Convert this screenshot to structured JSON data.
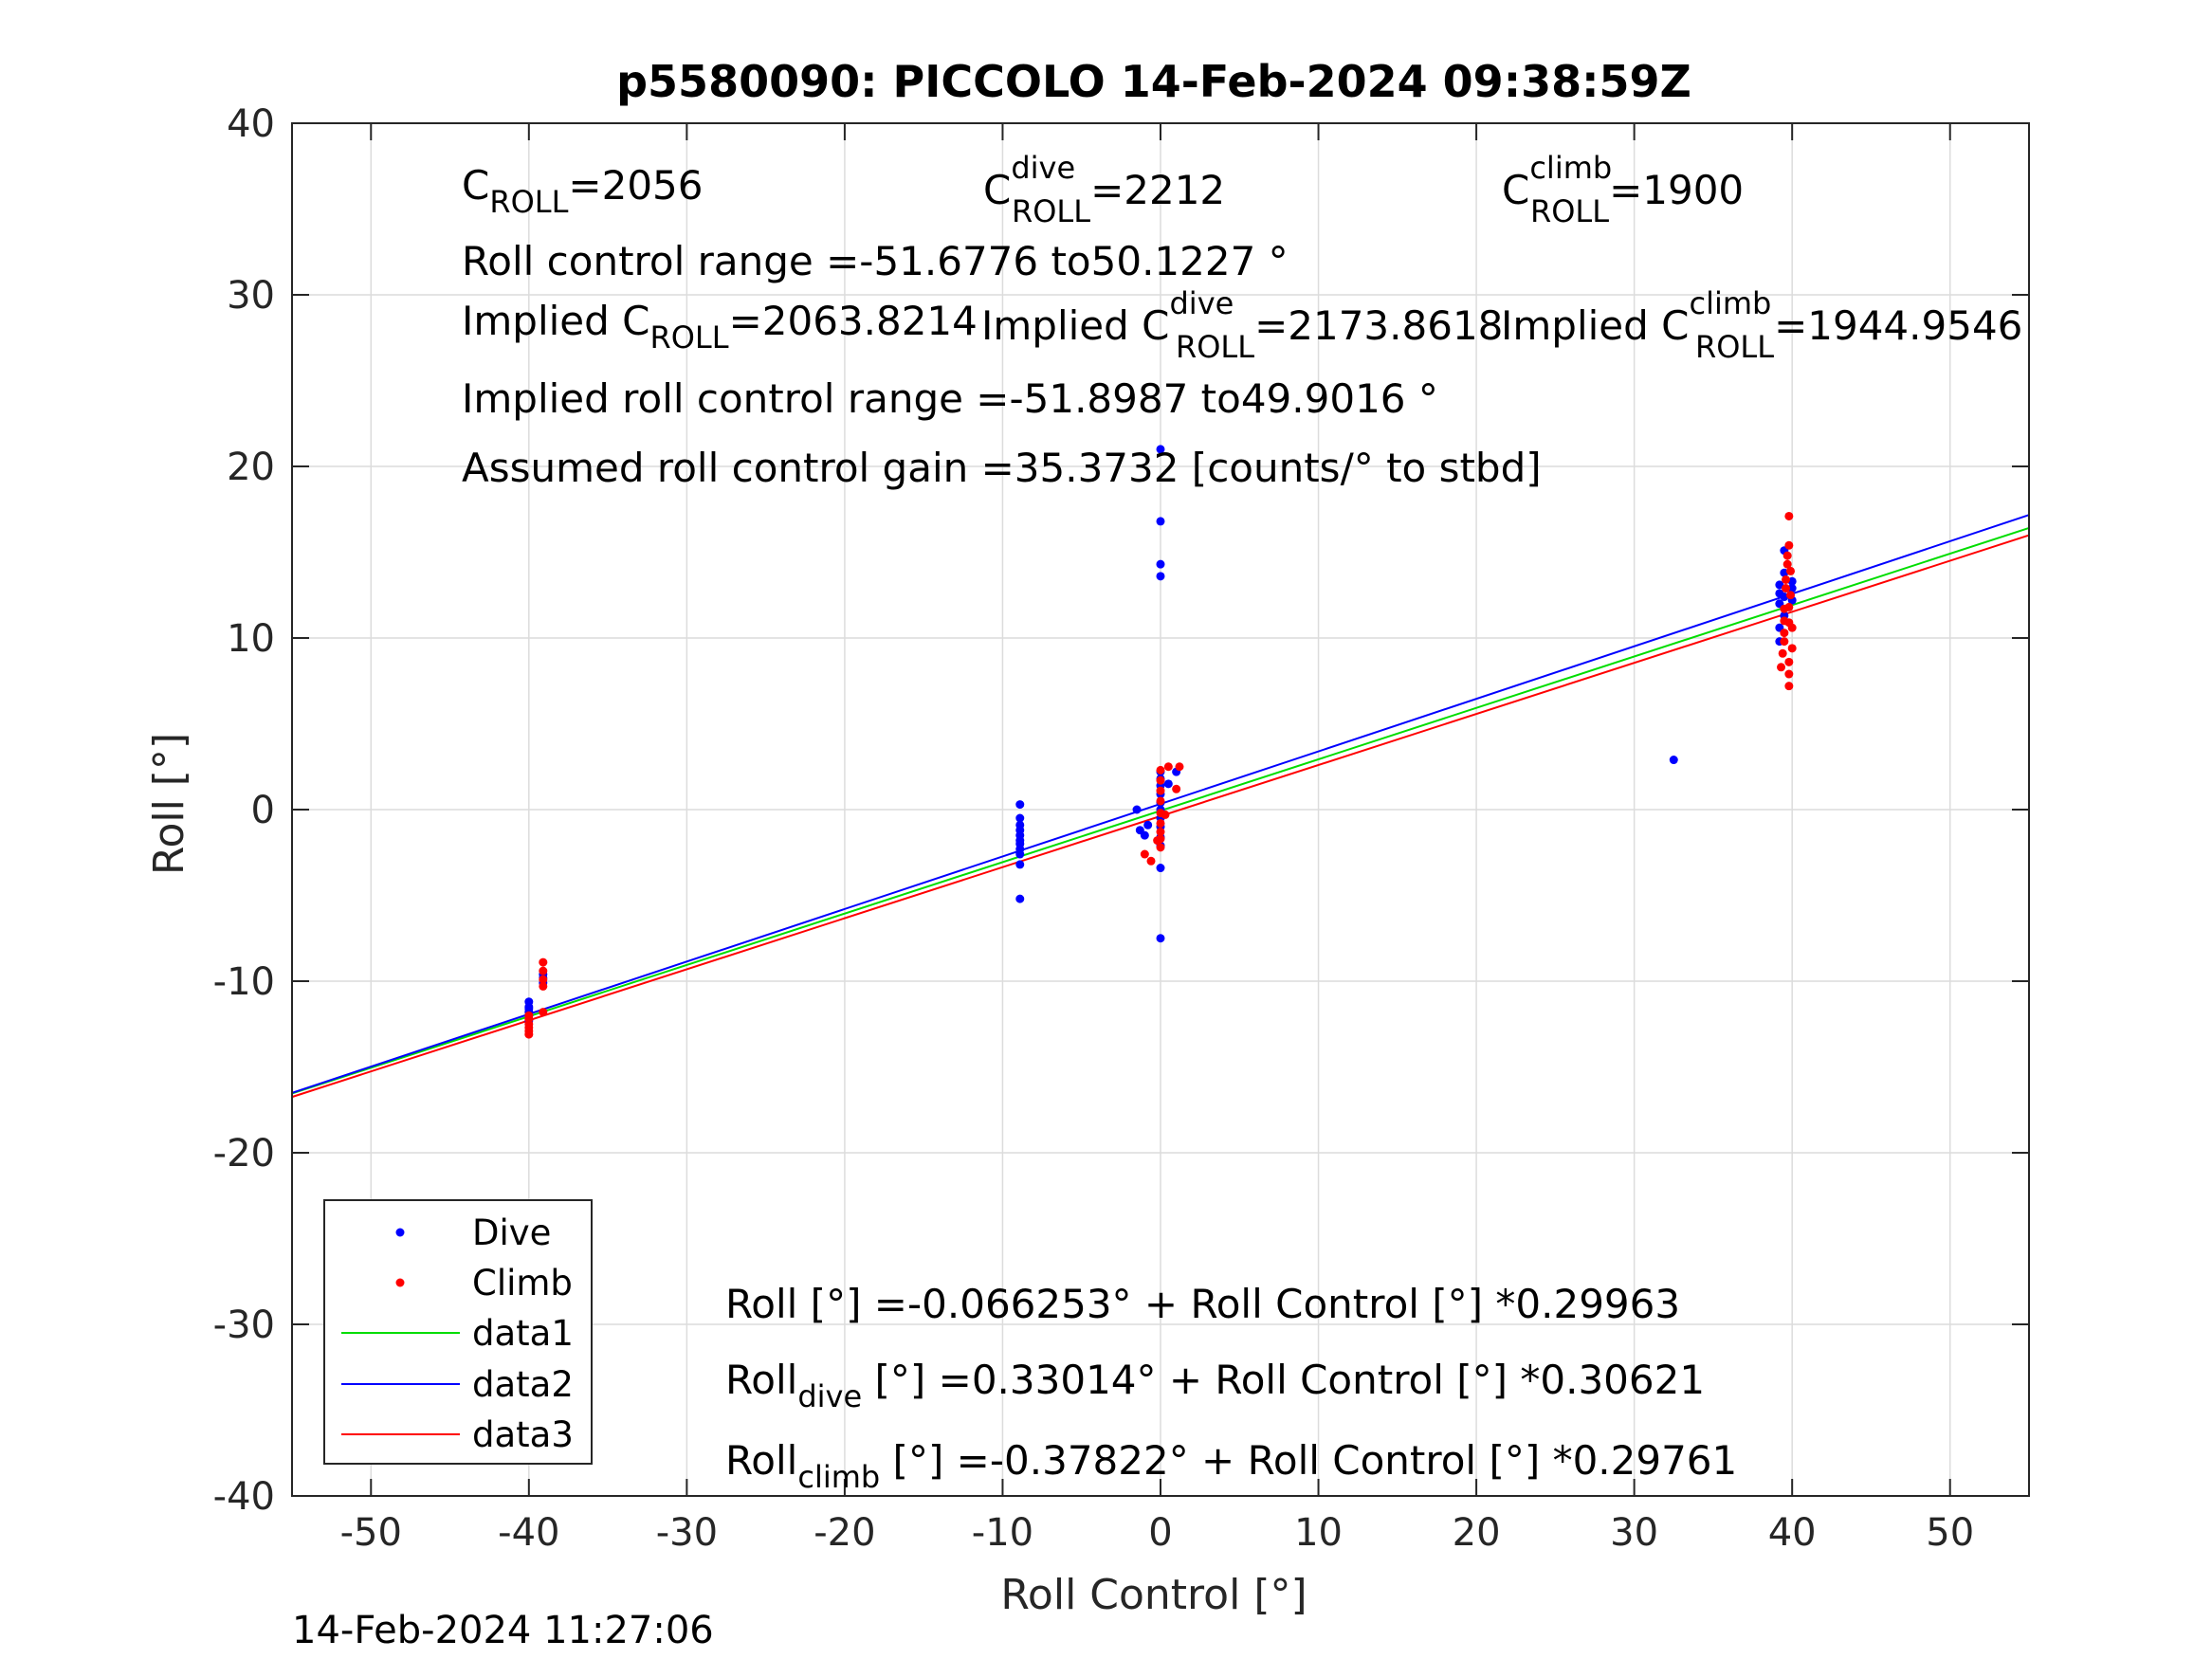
{
  "chart_data": {
    "type": "scatter",
    "title": "p5580090: PICCOLO 14-Feb-2024 09:38:59Z",
    "xlabel": "Roll Control [°]",
    "ylabel": "Roll [°]",
    "xlim": [
      -55,
      55
    ],
    "ylim": [
      -40,
      40
    ],
    "xticks": [
      -50,
      -40,
      -30,
      -20,
      -10,
      0,
      10,
      20,
      30,
      40,
      50
    ],
    "yticks": [
      -40,
      -30,
      -20,
      -10,
      0,
      10,
      20,
      30,
      40
    ],
    "grid": true,
    "legend_position": "bottom-left",
    "series": [
      {
        "name": "Dive",
        "kind": "points",
        "color": "#0000ff",
        "points": [
          [
            -40,
            -11.2
          ],
          [
            -40,
            -11.5
          ],
          [
            -40,
            -11.8
          ],
          [
            -40,
            -12.0
          ],
          [
            -40,
            -12.3
          ],
          [
            -40,
            -11.6
          ],
          [
            -39.1,
            -9.8
          ],
          [
            -39.1,
            -10.1
          ],
          [
            -39.1,
            -9.6
          ],
          [
            -8.9,
            0.3
          ],
          [
            -8.9,
            -0.5
          ],
          [
            -8.9,
            -0.9
          ],
          [
            -8.9,
            -1.2
          ],
          [
            -8.9,
            -1.5
          ],
          [
            -8.9,
            -1.8
          ],
          [
            -8.9,
            -2.0
          ],
          [
            -8.9,
            -2.3
          ],
          [
            -8.9,
            -2.6
          ],
          [
            -8.9,
            -3.2
          ],
          [
            -8.9,
            -5.2
          ],
          [
            -1.5,
            0.0
          ],
          [
            -1.3,
            -1.2
          ],
          [
            -1.0,
            -1.5
          ],
          [
            -0.8,
            -0.9
          ],
          [
            0,
            21.0
          ],
          [
            0,
            16.8
          ],
          [
            0,
            14.3
          ],
          [
            0,
            13.6
          ],
          [
            0,
            2.2
          ],
          [
            0,
            1.8
          ],
          [
            0,
            1.4
          ],
          [
            0,
            0.9
          ],
          [
            0,
            0.4
          ],
          [
            0,
            0.0
          ],
          [
            0,
            -0.5
          ],
          [
            0,
            -1.0
          ],
          [
            0,
            -1.6
          ],
          [
            0,
            -2.1
          ],
          [
            0,
            -3.4
          ],
          [
            0,
            -7.5
          ],
          [
            0.5,
            1.5
          ],
          [
            1.0,
            2.2
          ],
          [
            32.5,
            2.9
          ],
          [
            39.2,
            12.0
          ],
          [
            39.2,
            13.1
          ],
          [
            39.2,
            12.6
          ],
          [
            39.2,
            10.6
          ],
          [
            39.2,
            9.8
          ],
          [
            39.5,
            15.1
          ],
          [
            39.5,
            13.8
          ],
          [
            39.5,
            11.3
          ],
          [
            39.5,
            12.4
          ],
          [
            40.0,
            12.9
          ],
          [
            40.0,
            12.2
          ],
          [
            40.0,
            13.3
          ]
        ]
      },
      {
        "name": "Climb",
        "kind": "points",
        "color": "#ff0000",
        "points": [
          [
            -40,
            -12.5
          ],
          [
            -40,
            -12.7
          ],
          [
            -40,
            -12.9
          ],
          [
            -40,
            -13.1
          ],
          [
            -40,
            -12.2
          ],
          [
            -40,
            -12.0
          ],
          [
            -39.1,
            -8.9
          ],
          [
            -39.1,
            -9.4
          ],
          [
            -39.1,
            -9.9
          ],
          [
            -39.1,
            -10.3
          ],
          [
            -39.1,
            -11.8
          ],
          [
            -1.0,
            -2.6
          ],
          [
            -0.6,
            -3.0
          ],
          [
            -0.2,
            -1.8
          ],
          [
            0,
            2.3
          ],
          [
            0,
            1.7
          ],
          [
            0,
            1.1
          ],
          [
            0,
            0.5
          ],
          [
            0,
            -0.2
          ],
          [
            0,
            -0.8
          ],
          [
            0,
            -1.3
          ],
          [
            0,
            -1.7
          ],
          [
            0,
            -2.2
          ],
          [
            0.3,
            -0.3
          ],
          [
            0.5,
            2.5
          ],
          [
            1.0,
            1.2
          ],
          [
            1.2,
            2.5
          ],
          [
            39.3,
            8.3
          ],
          [
            39.4,
            9.1
          ],
          [
            39.5,
            9.8
          ],
          [
            39.5,
            10.3
          ],
          [
            39.5,
            11.0
          ],
          [
            39.5,
            11.7
          ],
          [
            39.6,
            12.9
          ],
          [
            39.6,
            13.4
          ],
          [
            39.7,
            14.3
          ],
          [
            39.7,
            14.8
          ],
          [
            39.8,
            15.4
          ],
          [
            39.8,
            17.1
          ],
          [
            39.8,
            7.2
          ],
          [
            39.8,
            7.9
          ],
          [
            39.8,
            8.6
          ],
          [
            39.8,
            10.9
          ],
          [
            39.8,
            11.8
          ],
          [
            39.9,
            12.5
          ],
          [
            39.9,
            13.9
          ],
          [
            40.0,
            9.4
          ],
          [
            40.0,
            10.6
          ]
        ]
      },
      {
        "name": "data1",
        "kind": "line",
        "color": "#00dd00",
        "intercept": -0.066253,
        "slope": 0.29963
      },
      {
        "name": "data2",
        "kind": "line",
        "color": "#0000ff",
        "intercept": 0.33014,
        "slope": 0.30621
      },
      {
        "name": "data3",
        "kind": "line",
        "color": "#ff0000",
        "intercept": -0.37822,
        "slope": 0.29761
      }
    ],
    "annotations": {
      "c_roll": {
        "base": "C",
        "sub": "ROLL",
        "value": "=2056"
      },
      "c_roll_dive": {
        "base": "C",
        "sup": "dive",
        "sub": "ROLL",
        "value": "=2212"
      },
      "c_roll_climb": {
        "base": "C",
        "sup": "climb",
        "sub": "ROLL",
        "value": "=1900"
      },
      "roll_control_range": "Roll control range =-51.6776 to50.1227 °",
      "implied_c_roll": {
        "base": "Implied C",
        "sub": "ROLL",
        "value": "=2063.8214"
      },
      "implied_c_roll_dive": {
        "base": "Implied C",
        "sup": "dive",
        "sub": "ROLL",
        "value": "=2173.8618"
      },
      "implied_c_roll_climb": {
        "base": "Implied C",
        "sup": "climb",
        "sub": "ROLL",
        "value": "=1944.9546"
      },
      "implied_roll_control_range": "Implied roll control range =-51.8987 to49.9016 °",
      "gain": "Assumed roll control gain =35.3732 [counts/° to stbd]",
      "fit_all": "Roll [°] =-0.066253° + Roll Control [°] *0.29963",
      "fit_dive": {
        "base": "Roll",
        "sub": "dive",
        "rest": " [°] =0.33014° + Roll Control [°] *0.30621"
      },
      "fit_climb": {
        "base": "Roll",
        "sub": "climb",
        "rest": " [°] =-0.37822° + Roll Control [°] *0.29761"
      }
    },
    "footer_timestamp": "14-Feb-2024 11:27:06"
  }
}
